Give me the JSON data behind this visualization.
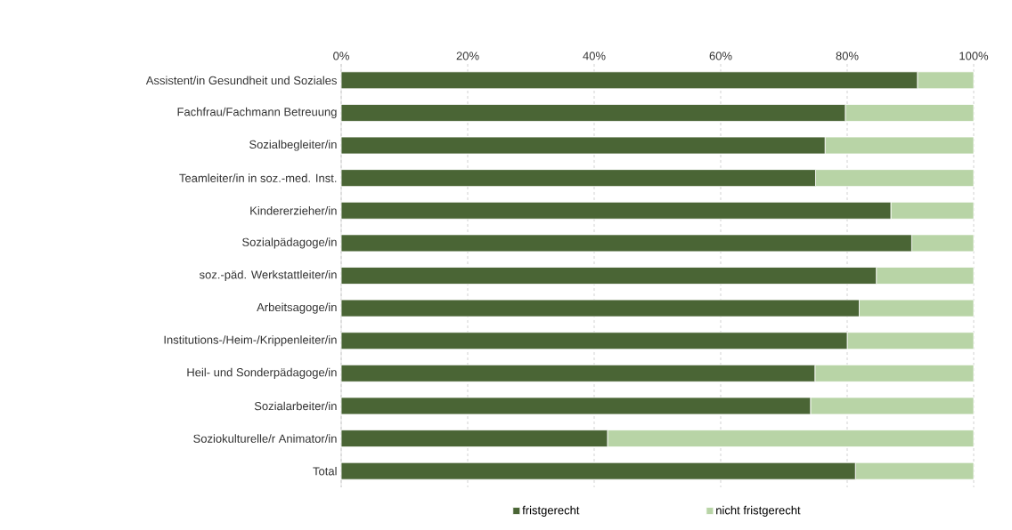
{
  "chart_data": {
    "type": "bar",
    "orientation": "horizontal",
    "stacked": true,
    "categories": [
      "Assistent/in Gesundheit und Soziales",
      "Fachfrau/Fachmann Betreuung",
      "Sozialbegleiter/in",
      "Teamleiter/in in soz.-med. Inst.",
      "Kindererzieher/in",
      "Sozialpädagoge/in",
      "soz.-päd. Werkstattleiter/in",
      "Arbeitsagoge/in",
      "Institutions-/Heim-/Krippenleiter/in",
      "Heil- und Sonderpädagoge/in",
      "Sozialarbeiter/in",
      "Soziokulturelle/r Animator/in",
      "Total"
    ],
    "series": [
      {
        "name": "fristgerecht",
        "color": "#4a6535",
        "values": [
          91.1,
          79.7,
          76.5,
          75.0,
          86.9,
          90.2,
          84.6,
          81.9,
          80.0,
          74.9,
          74.2,
          42.1,
          81.3
        ]
      },
      {
        "name": "nicht fristgerecht",
        "color": "#b8d4a6",
        "values": [
          8.9,
          20.3,
          23.5,
          25.0,
          13.1,
          9.8,
          15.4,
          18.1,
          20.0,
          25.1,
          25.8,
          57.9,
          18.7
        ]
      }
    ],
    "xlim": [
      0,
      100
    ],
    "xticks": [
      {
        "value": 0,
        "label": "0%"
      },
      {
        "value": 20,
        "label": "20%"
      },
      {
        "value": 40,
        "label": "40%"
      },
      {
        "value": 60,
        "label": "60%"
      },
      {
        "value": 80,
        "label": "80%"
      },
      {
        "value": 100,
        "label": "100%"
      }
    ],
    "grid": "x",
    "legend": "bottom"
  }
}
